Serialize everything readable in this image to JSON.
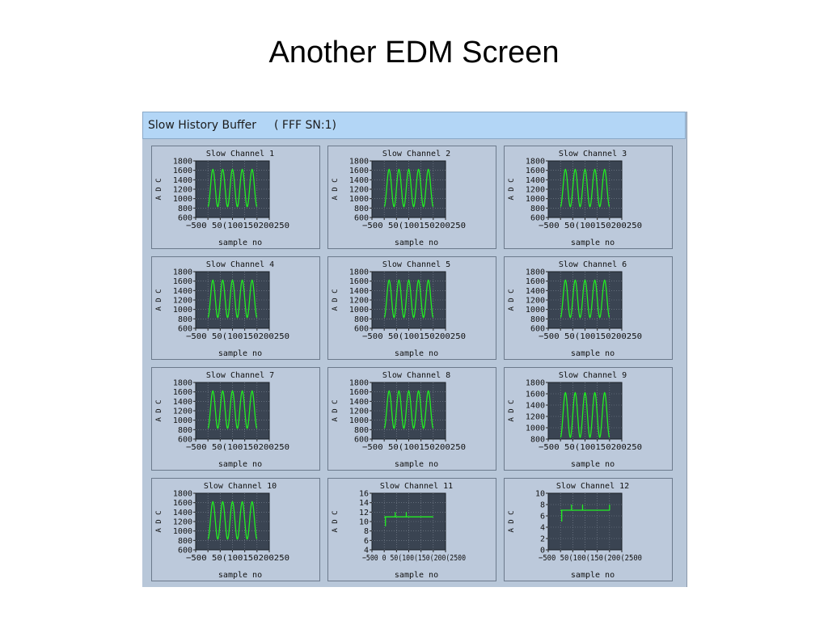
{
  "slide": {
    "title": "Another EDM Screen"
  },
  "window": {
    "title": "Slow History Buffer",
    "serial": "( FFF SN:1)"
  },
  "colors": {
    "plot_background": "#3a4452",
    "trace": "#22ee22",
    "titlebar": "#b3d6f6",
    "panel": "#bcc9db"
  },
  "chart_data": [
    {
      "type": "line",
      "title": "Slow Channel 1",
      "xlabel": "sample no",
      "ylabel": "A D C",
      "xlim": [
        -50,
        250
      ],
      "ylim": [
        600,
        1800
      ],
      "xticks": [
        "-50",
        "0",
        "50",
        "100",
        "150",
        "200",
        "250"
      ],
      "xtick_text": "−500 50(100150200250",
      "yticks": [
        "1800",
        "1600",
        "1400",
        "1200",
        "1000",
        "800",
        "600"
      ],
      "series": [
        {
          "shape": "sine",
          "x_start": 0,
          "x_end": 200,
          "cycles": 5,
          "min": 830,
          "max": 1620
        }
      ]
    },
    {
      "type": "line",
      "title": "Slow Channel 2",
      "xlabel": "sample no",
      "ylabel": "A D C",
      "xlim": [
        -50,
        250
      ],
      "ylim": [
        600,
        1800
      ],
      "xticks": [
        "-50",
        "0",
        "50",
        "100",
        "150",
        "200",
        "250"
      ],
      "xtick_text": "−500 50(100150200250",
      "yticks": [
        "1800",
        "1600",
        "1400",
        "1200",
        "1000",
        "800",
        "600"
      ],
      "series": [
        {
          "shape": "sine",
          "x_start": 0,
          "x_end": 200,
          "cycles": 5,
          "min": 830,
          "max": 1620
        }
      ]
    },
    {
      "type": "line",
      "title": "Slow Channel 3",
      "xlabel": "sample no",
      "ylabel": "A D C",
      "xlim": [
        -50,
        250
      ],
      "ylim": [
        600,
        1800
      ],
      "xticks": [
        "-50",
        "0",
        "50",
        "100",
        "150",
        "200",
        "250"
      ],
      "xtick_text": "−500 50(100150200250",
      "yticks": [
        "1800",
        "1600",
        "1400",
        "1200",
        "1000",
        "800",
        "600"
      ],
      "series": [
        {
          "shape": "sine",
          "x_start": 0,
          "x_end": 200,
          "cycles": 5,
          "min": 830,
          "max": 1620
        }
      ]
    },
    {
      "type": "line",
      "title": "Slow Channel 4",
      "xlabel": "sample no",
      "ylabel": "A D C",
      "xlim": [
        -50,
        250
      ],
      "ylim": [
        600,
        1800
      ],
      "xticks": [
        "-50",
        "0",
        "50",
        "100",
        "150",
        "200",
        "250"
      ],
      "xtick_text": "−500 50(100150200250",
      "yticks": [
        "1800",
        "1600",
        "1400",
        "1200",
        "1000",
        "800",
        "600"
      ],
      "series": [
        {
          "shape": "sine",
          "x_start": 0,
          "x_end": 200,
          "cycles": 5,
          "min": 830,
          "max": 1620
        }
      ]
    },
    {
      "type": "line",
      "title": "Slow Channel 5",
      "xlabel": "sample no",
      "ylabel": "A D C",
      "xlim": [
        -50,
        250
      ],
      "ylim": [
        600,
        1800
      ],
      "xticks": [
        "-50",
        "0",
        "50",
        "100",
        "150",
        "200",
        "250"
      ],
      "xtick_text": "−500 50(100150200250",
      "yticks": [
        "1800",
        "1600",
        "1400",
        "1200",
        "1000",
        "800",
        "600"
      ],
      "series": [
        {
          "shape": "sine",
          "x_start": 0,
          "x_end": 200,
          "cycles": 5,
          "min": 830,
          "max": 1620
        }
      ]
    },
    {
      "type": "line",
      "title": "Slow Channel 6",
      "xlabel": "sample no",
      "ylabel": "A D C",
      "xlim": [
        -50,
        250
      ],
      "ylim": [
        600,
        1800
      ],
      "xticks": [
        "-50",
        "0",
        "50",
        "100",
        "150",
        "200",
        "250"
      ],
      "xtick_text": "−500 50(100150200250",
      "yticks": [
        "1800",
        "1600",
        "1400",
        "1200",
        "1000",
        "800",
        "600"
      ],
      "series": [
        {
          "shape": "sine",
          "x_start": 0,
          "x_end": 200,
          "cycles": 5,
          "min": 830,
          "max": 1620
        }
      ]
    },
    {
      "type": "line",
      "title": "Slow Channel 7",
      "xlabel": "sample no",
      "ylabel": "A D C",
      "xlim": [
        -50,
        250
      ],
      "ylim": [
        600,
        1800
      ],
      "xticks": [
        "-50",
        "0",
        "50",
        "100",
        "150",
        "200",
        "250"
      ],
      "xtick_text": "−500 50(100150200250",
      "yticks": [
        "1800",
        "1600",
        "1400",
        "1200",
        "1000",
        "800",
        "600"
      ],
      "series": [
        {
          "shape": "sine",
          "x_start": 0,
          "x_end": 200,
          "cycles": 5,
          "min": 830,
          "max": 1620
        }
      ]
    },
    {
      "type": "line",
      "title": "Slow Channel 8",
      "xlabel": "sample no",
      "ylabel": "A D C",
      "xlim": [
        -50,
        250
      ],
      "ylim": [
        600,
        1800
      ],
      "xticks": [
        "-50",
        "0",
        "50",
        "100",
        "150",
        "200",
        "250"
      ],
      "xtick_text": "−500 50(100150200250",
      "yticks": [
        "1800",
        "1600",
        "1400",
        "1200",
        "1000",
        "800",
        "600"
      ],
      "series": [
        {
          "shape": "sine",
          "x_start": 0,
          "x_end": 200,
          "cycles": 5,
          "min": 830,
          "max": 1620
        }
      ]
    },
    {
      "type": "line",
      "title": "Slow Channel 9",
      "xlabel": "sample no",
      "ylabel": "A D C",
      "xlim": [
        -50,
        250
      ],
      "ylim": [
        800,
        1800
      ],
      "xticks": [
        "-50",
        "0",
        "50",
        "100",
        "150",
        "200",
        "250"
      ],
      "xtick_text": "−500 50(100150200250",
      "yticks": [
        "1800",
        "1600",
        "1400",
        "1200",
        "1000",
        "800"
      ],
      "series": [
        {
          "shape": "sine",
          "x_start": 0,
          "x_end": 200,
          "cycles": 5,
          "min": 830,
          "max": 1620
        }
      ]
    },
    {
      "type": "line",
      "title": "Slow Channel 10",
      "xlabel": "sample no",
      "ylabel": "A D C",
      "xlim": [
        -50,
        250
      ],
      "ylim": [
        600,
        1800
      ],
      "xticks": [
        "-50",
        "0",
        "50",
        "100",
        "150",
        "200",
        "250"
      ],
      "xtick_text": "−500 50(100150200250",
      "yticks": [
        "1800",
        "1600",
        "1400",
        "1200",
        "1000",
        "800",
        "600"
      ],
      "series": [
        {
          "shape": "sine",
          "x_start": 0,
          "x_end": 200,
          "cycles": 5,
          "min": 830,
          "max": 1620
        }
      ]
    },
    {
      "type": "line",
      "title": "Slow Channel 11",
      "xlabel": "sample no",
      "ylabel": "A D C",
      "xlim": [
        -50,
        250
      ],
      "ylim": [
        4,
        16
      ],
      "xticks": [
        "-50",
        "0",
        "50",
        "100",
        "150",
        "200",
        "250"
      ],
      "xtick_text": "−500 0 50(100(150(200(2500",
      "yticks": [
        "16",
        "14",
        "12",
        "10",
        "8",
        "6",
        "4"
      ],
      "series": [
        {
          "shape": "step",
          "x_start": 0,
          "x_end": 200,
          "base": 11,
          "spikes": [
            {
              "x": 5,
              "y": 9
            },
            {
              "x": 45,
              "y": 12
            },
            {
              "x": 90,
              "y": 12
            }
          ]
        }
      ]
    },
    {
      "type": "line",
      "title": "Slow Channel 12",
      "xlabel": "sample no",
      "ylabel": "A D C",
      "xlim": [
        -50,
        250
      ],
      "ylim": [
        0,
        10
      ],
      "xticks": [
        "-50",
        "0",
        "50",
        "100",
        "150",
        "200",
        "250"
      ],
      "xtick_text": "−500 50(100(150(200(2500",
      "yticks": [
        "10",
        "8",
        "6",
        "4",
        "2",
        "0"
      ],
      "series": [
        {
          "shape": "step",
          "x_start": 0,
          "x_end": 200,
          "base": 7,
          "spikes": [
            {
              "x": 5,
              "y": 5
            },
            {
              "x": 45,
              "y": 8
            },
            {
              "x": 90,
              "y": 8
            },
            {
              "x": 200,
              "y": 8
            }
          ]
        }
      ]
    }
  ]
}
